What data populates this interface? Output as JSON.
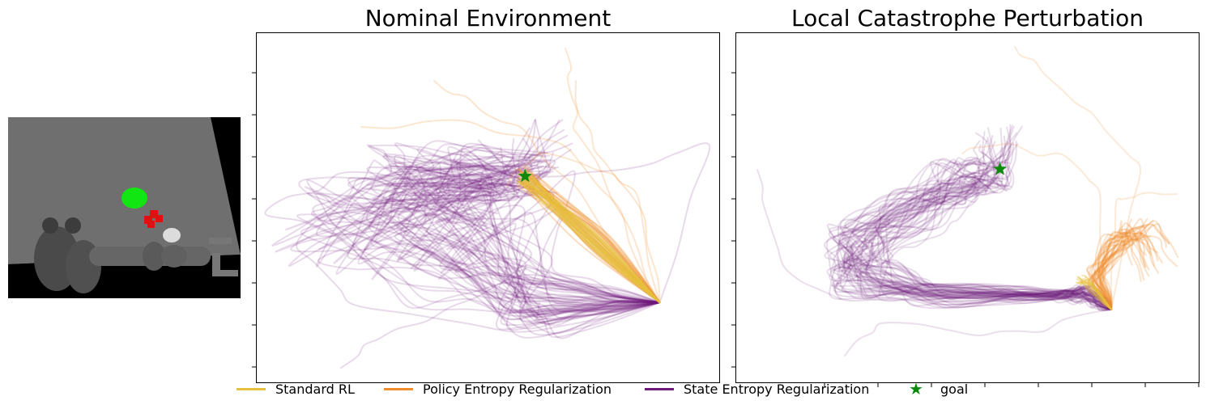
{
  "colors": {
    "standard_rl": "#e6c13e",
    "policy_entropy": "#f08d2a",
    "state_entropy": "#6e1a7a",
    "goal": "#0a8a0a"
  },
  "chart_data": [
    {
      "type": "line",
      "title": "Nominal Environment",
      "xlabel": "",
      "ylabel": "",
      "grid": false,
      "axis_tick_labels": "none",
      "goal": {
        "x": 0.58,
        "y": 0.59
      },
      "start": {
        "x": 0.87,
        "y": 0.23
      },
      "series": [
        {
          "name": "Standard RL",
          "style": "tight bundle of trajectories from start straight to goal"
        },
        {
          "name": "Policy Entropy Regularization",
          "style": "trajectories from start toward goal, some wander upward/left"
        },
        {
          "name": "State Entropy Regularization",
          "style": "widely spread trajectories looping left before reaching goal"
        }
      ]
    },
    {
      "type": "line",
      "title": "Local Catastrophe Perturbation",
      "xlabel": "",
      "ylabel": "",
      "grid": false,
      "axis_tick_labels": "none",
      "goal": {
        "x": 0.57,
        "y": 0.61
      },
      "start": {
        "x": 0.81,
        "y": 0.21
      },
      "series": [
        {
          "name": "Standard RL",
          "style": "short trajectories stuck near start, moving up-right"
        },
        {
          "name": "Policy Entropy Regularization",
          "style": "trajectories stuck near start, fanning up-right"
        },
        {
          "name": "State Entropy Regularization",
          "style": "trajectories going left then curving up to goal"
        }
      ]
    }
  ],
  "legend": [
    {
      "label": "Standard RL",
      "kind": "line",
      "color_key": "standard_rl"
    },
    {
      "label": "Policy Entropy Regularization",
      "kind": "line",
      "color_key": "policy_entropy"
    },
    {
      "label": "State Entropy Regularization",
      "kind": "line",
      "color_key": "state_entropy"
    },
    {
      "label": "goal",
      "kind": "star",
      "color_key": "goal"
    }
  ],
  "scene_image": {
    "description_icon": "robot-arm-scene"
  }
}
